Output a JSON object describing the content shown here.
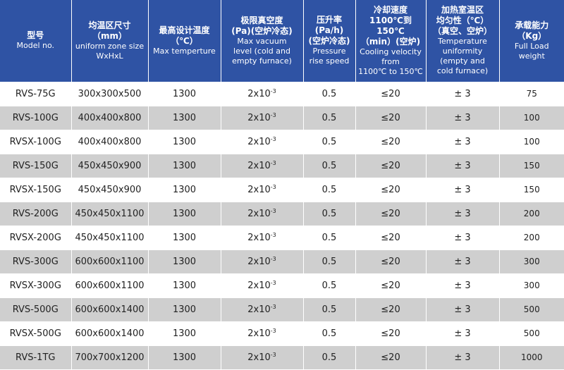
{
  "headers": [
    {
      "zh": "型号",
      "en": [
        "Model no."
      ]
    },
    {
      "zh": "均温区尺寸",
      "zh2": "（mm）",
      "en": [
        "uniform zone size",
        "WxHxL"
      ]
    },
    {
      "zh": "最高设计温度",
      "zh2": "（℃）",
      "en": [
        "Max temperture"
      ]
    },
    {
      "zh": "极限真空度",
      "zh2": "(Pa)(空炉冷态)",
      "en": [
        "Max vacuum",
        "level (cold and",
        "empty furnace)"
      ]
    },
    {
      "zh": "压升率",
      "zh2": "(Pa/h)",
      "zh3": "(空炉冷态)",
      "en": [
        "Pressure",
        "rise speed"
      ]
    },
    {
      "zh": "冷却速度",
      "zh2": "1100℃到150℃",
      "zh3": "（min）(空炉)",
      "en": [
        "Cooling velocity",
        "from",
        "1100℃ to 150℃"
      ]
    },
    {
      "zh": "加热室温区",
      "zh2": "均匀性（℃）",
      "zh3": "（真空、空炉）",
      "en": [
        "Temperature",
        "uniformity",
        "(empty and",
        "cold furnace)"
      ]
    },
    {
      "zh": "承载能力",
      "zh2": "（Kg）",
      "en": [
        "Full Load",
        "weight"
      ]
    }
  ],
  "vacuum_base": "2x10",
  "vacuum_exp": "-3",
  "rows": [
    {
      "model": "RVS-75G",
      "size": "300x300x500",
      "temp": "1300",
      "pressure": "0.5",
      "cooling": "≤20",
      "uniformity": "± 3",
      "load": "75"
    },
    {
      "model": "RVS-100G",
      "size": "400x400x800",
      "temp": "1300",
      "pressure": "0.5",
      "cooling": "≤20",
      "uniformity": "± 3",
      "load": "100"
    },
    {
      "model": "RVSX-100G",
      "size": "400x400x800",
      "temp": "1300",
      "pressure": "0.5",
      "cooling": "≤20",
      "uniformity": "± 3",
      "load": "100"
    },
    {
      "model": "RVS-150G",
      "size": "450x450x900",
      "temp": "1300",
      "pressure": "0.5",
      "cooling": "≤20",
      "uniformity": "± 3",
      "load": "150"
    },
    {
      "model": "RVSX-150G",
      "size": "450x450x900",
      "temp": "1300",
      "pressure": "0.5",
      "cooling": "≤20",
      "uniformity": "± 3",
      "load": "150"
    },
    {
      "model": "RVS-200G",
      "size": "450x450x1100",
      "temp": "1300",
      "pressure": "0.5",
      "cooling": "≤20",
      "uniformity": "± 3",
      "load": "200"
    },
    {
      "model": "RVSX-200G",
      "size": "450x450x1100",
      "temp": "1300",
      "pressure": "0.5",
      "cooling": "≤20",
      "uniformity": "± 3",
      "load": "200"
    },
    {
      "model": "RVS-300G",
      "size": "600x600x1100",
      "temp": "1300",
      "pressure": "0.5",
      "cooling": "≤20",
      "uniformity": "± 3",
      "load": "300"
    },
    {
      "model": "RVSX-300G",
      "size": "600x600x1100",
      "temp": "1300",
      "pressure": "0.5",
      "cooling": "≤20",
      "uniformity": "± 3",
      "load": "300"
    },
    {
      "model": "RVS-500G",
      "size": "600x600x1400",
      "temp": "1300",
      "pressure": "0.5",
      "cooling": "≤20",
      "uniformity": "± 3",
      "load": "500"
    },
    {
      "model": "RVSX-500G",
      "size": "600x600x1400",
      "temp": "1300",
      "pressure": "0.5",
      "cooling": "≤20",
      "uniformity": "± 3",
      "load": "500"
    },
    {
      "model": "RVS-1TG",
      "size": "700x700x1200",
      "temp": "1300",
      "pressure": "0.5",
      "cooling": "≤20",
      "uniformity": "± 3",
      "load": "1000"
    }
  ],
  "colors": {
    "header_bg": "#2f53a4",
    "header_text": "#ffffff",
    "row_alt": "#cfcfcf",
    "row_base": "#ffffff",
    "cell_text": "#222222"
  }
}
